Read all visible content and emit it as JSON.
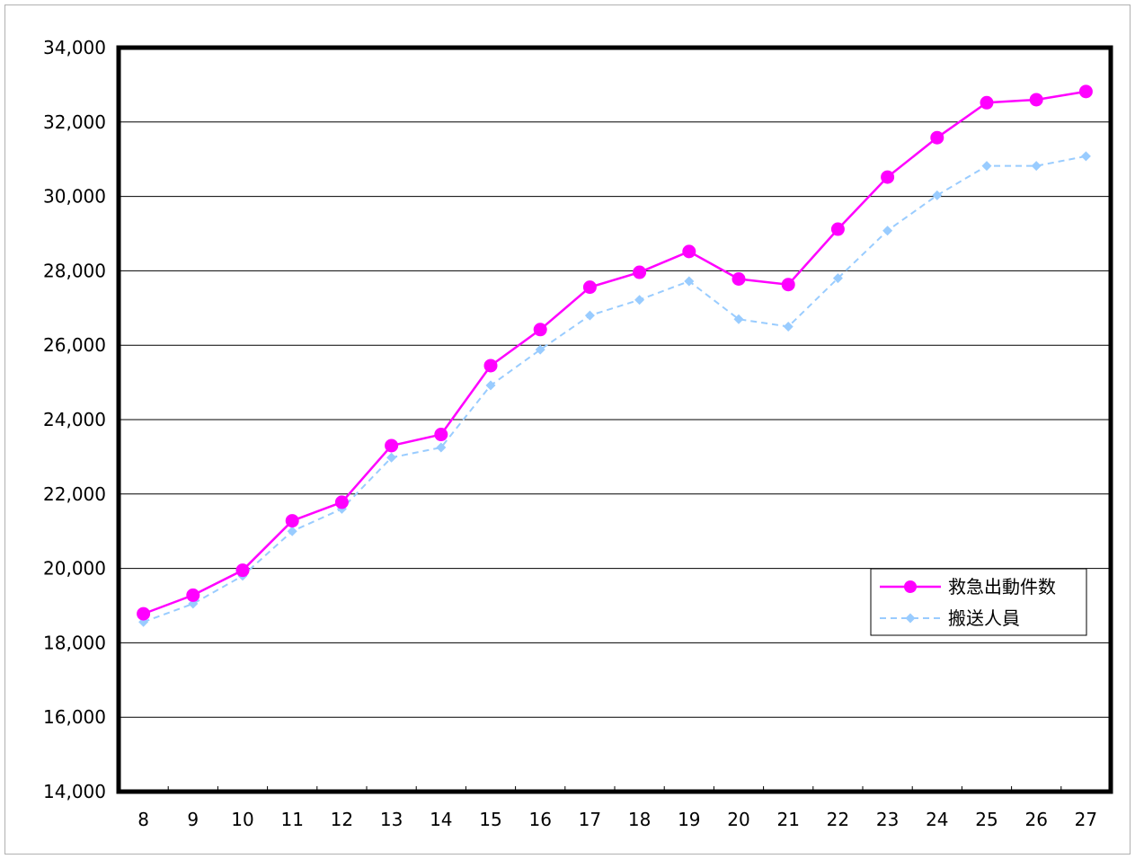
{
  "chart_data": {
    "type": "line",
    "title": "",
    "xlabel": "",
    "ylabel": "",
    "categories": [
      "8",
      "9",
      "10",
      "11",
      "12",
      "13",
      "14",
      "15",
      "16",
      "17",
      "18",
      "19",
      "20",
      "21",
      "22",
      "23",
      "24",
      "25",
      "26",
      "27"
    ],
    "ylim": [
      14000,
      34000
    ],
    "ytick_step": 2000,
    "y_tick_labels": [
      "14,000",
      "16,000",
      "18,000",
      "20,000",
      "22,000",
      "24,000",
      "26,000",
      "28,000",
      "30,000",
      "32,000",
      "34,000"
    ],
    "grid": true,
    "legend_position": "right",
    "series": [
      {
        "name": "救急出動件数",
        "color": "#ff00ff",
        "marker": "circle",
        "line_style": "solid",
        "values": [
          18780,
          19280,
          19950,
          21280,
          21780,
          23300,
          23600,
          25450,
          26420,
          27560,
          27960,
          28520,
          27780,
          27630,
          29120,
          30520,
          31580,
          32520,
          32600,
          32820
        ]
      },
      {
        "name": "搬送人員",
        "color": "#99ccff",
        "marker": "diamond",
        "line_style": "dashed",
        "values": [
          18560,
          19050,
          19800,
          21000,
          21600,
          22980,
          23250,
          24920,
          25880,
          26800,
          27220,
          27720,
          26700,
          26500,
          27800,
          29080,
          30030,
          30820,
          30820,
          31080
        ]
      }
    ]
  }
}
